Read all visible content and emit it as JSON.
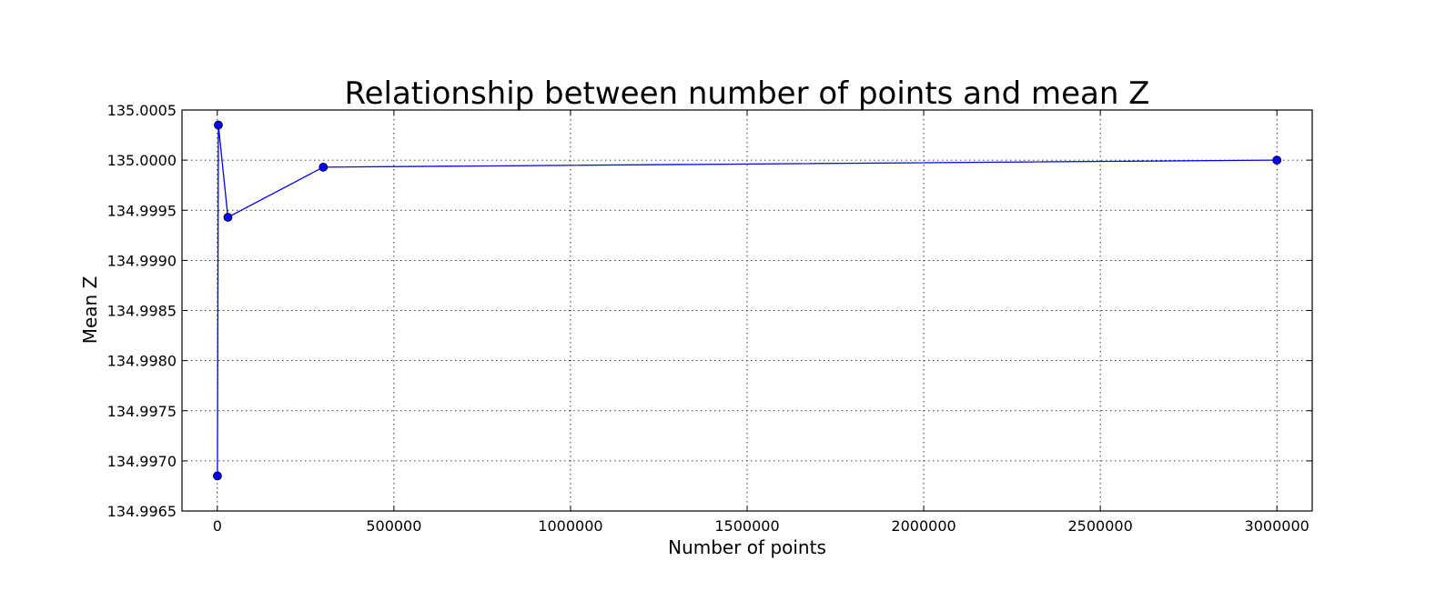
{
  "chart_data": {
    "type": "line",
    "title": "Relationship between number of points and mean Z",
    "xlabel": "Number of points",
    "ylabel": "Mean Z",
    "xlim": [
      -100000,
      3100000
    ],
    "ylim": [
      134.9965,
      135.0005
    ],
    "x_ticks": [
      0,
      500000,
      1000000,
      1500000,
      2000000,
      2500000,
      3000000
    ],
    "x_tick_labels": [
      "0",
      "500000",
      "1000000",
      "1500000",
      "2000000",
      "2500000",
      "3000000"
    ],
    "y_ticks": [
      134.9965,
      134.997,
      134.9975,
      134.998,
      134.9985,
      134.999,
      134.9995,
      135.0,
      135.0005
    ],
    "y_tick_labels": [
      "134.9965",
      "134.9970",
      "134.9975",
      "134.9980",
      "134.9985",
      "134.9990",
      "134.9995",
      "135.0000",
      "135.0005"
    ],
    "grid": true,
    "grid_style": "dotted",
    "series": [
      {
        "color": "#0000ff",
        "marker": "circle",
        "x": [
          300,
          3000,
          30000,
          300000,
          3000000
        ],
        "y": [
          134.99685,
          135.00035,
          134.99943,
          134.99993,
          135.0
        ]
      }
    ]
  }
}
